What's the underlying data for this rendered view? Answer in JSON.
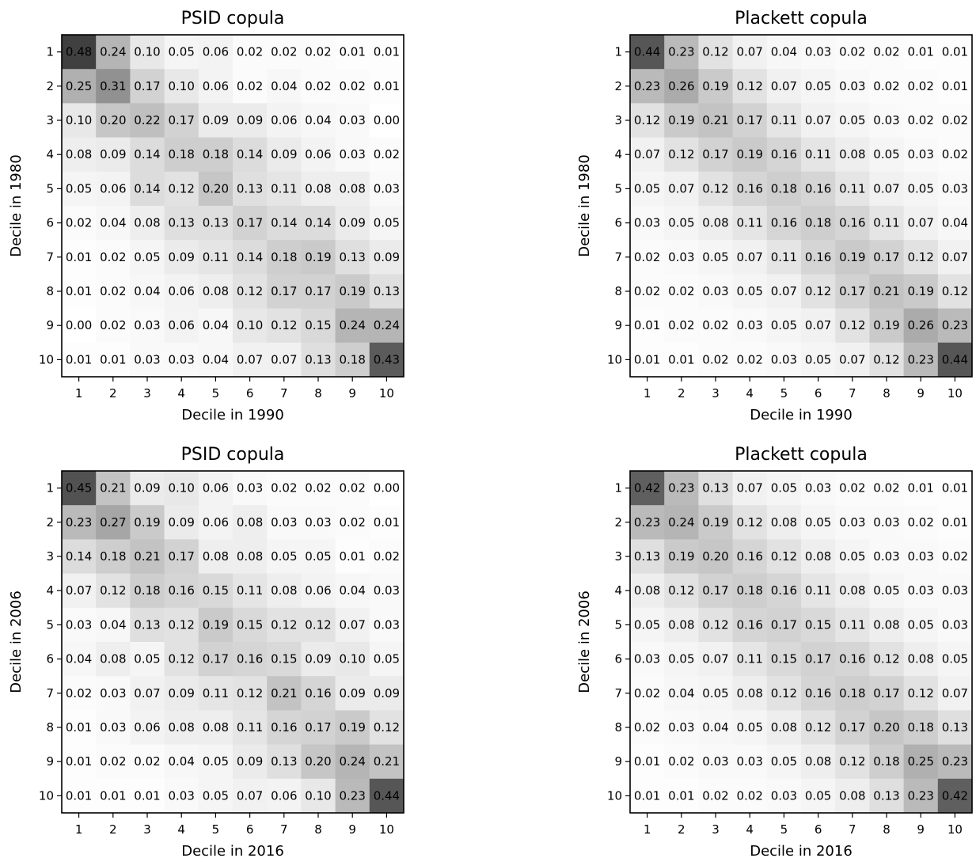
{
  "chart_data": [
    {
      "type": "heatmap",
      "title": "PSID copula",
      "xlabel": "Decile in 1990",
      "ylabel": "Decile in 1980",
      "x_ticks": [
        "1",
        "2",
        "3",
        "4",
        "5",
        "6",
        "7",
        "8",
        "9",
        "10"
      ],
      "y_ticks": [
        "1",
        "2",
        "3",
        "4",
        "5",
        "6",
        "7",
        "8",
        "9",
        "10"
      ],
      "colormap": "Greys",
      "vmin": 0.0,
      "vmax": 0.6,
      "values": [
        [
          0.48,
          0.24,
          0.1,
          0.05,
          0.06,
          0.02,
          0.02,
          0.02,
          0.01,
          0.01
        ],
        [
          0.25,
          0.31,
          0.17,
          0.1,
          0.06,
          0.02,
          0.04,
          0.02,
          0.02,
          0.01
        ],
        [
          0.1,
          0.2,
          0.22,
          0.17,
          0.09,
          0.09,
          0.06,
          0.04,
          0.03,
          0.0
        ],
        [
          0.08,
          0.09,
          0.14,
          0.18,
          0.18,
          0.14,
          0.09,
          0.06,
          0.03,
          0.02
        ],
        [
          0.05,
          0.06,
          0.14,
          0.12,
          0.2,
          0.13,
          0.11,
          0.08,
          0.08,
          0.03
        ],
        [
          0.02,
          0.04,
          0.08,
          0.13,
          0.13,
          0.17,
          0.14,
          0.14,
          0.09,
          0.05
        ],
        [
          0.01,
          0.02,
          0.05,
          0.09,
          0.11,
          0.14,
          0.18,
          0.19,
          0.13,
          0.09
        ],
        [
          0.01,
          0.02,
          0.04,
          0.06,
          0.08,
          0.12,
          0.17,
          0.17,
          0.19,
          0.13
        ],
        [
          0.0,
          0.02,
          0.03,
          0.06,
          0.04,
          0.1,
          0.12,
          0.15,
          0.24,
          0.24
        ],
        [
          0.01,
          0.01,
          0.03,
          0.03,
          0.04,
          0.07,
          0.07,
          0.13,
          0.18,
          0.43
        ]
      ]
    },
    {
      "type": "heatmap",
      "title": "Plackett copula",
      "xlabel": "Decile in 1990",
      "ylabel": "Decile in 1980",
      "x_ticks": [
        "1",
        "2",
        "3",
        "4",
        "5",
        "6",
        "7",
        "8",
        "9",
        "10"
      ],
      "y_ticks": [
        "1",
        "2",
        "3",
        "4",
        "5",
        "6",
        "7",
        "8",
        "9",
        "10"
      ],
      "colormap": "Greys",
      "vmin": 0.0,
      "vmax": 0.6,
      "values": [
        [
          0.44,
          0.23,
          0.12,
          0.07,
          0.04,
          0.03,
          0.02,
          0.02,
          0.01,
          0.01
        ],
        [
          0.23,
          0.26,
          0.19,
          0.12,
          0.07,
          0.05,
          0.03,
          0.02,
          0.02,
          0.01
        ],
        [
          0.12,
          0.19,
          0.21,
          0.17,
          0.11,
          0.07,
          0.05,
          0.03,
          0.02,
          0.02
        ],
        [
          0.07,
          0.12,
          0.17,
          0.19,
          0.16,
          0.11,
          0.08,
          0.05,
          0.03,
          0.02
        ],
        [
          0.05,
          0.07,
          0.12,
          0.16,
          0.18,
          0.16,
          0.11,
          0.07,
          0.05,
          0.03
        ],
        [
          0.03,
          0.05,
          0.08,
          0.11,
          0.16,
          0.18,
          0.16,
          0.11,
          0.07,
          0.04
        ],
        [
          0.02,
          0.03,
          0.05,
          0.07,
          0.11,
          0.16,
          0.19,
          0.17,
          0.12,
          0.07
        ],
        [
          0.02,
          0.02,
          0.03,
          0.05,
          0.07,
          0.12,
          0.17,
          0.21,
          0.19,
          0.12
        ],
        [
          0.01,
          0.02,
          0.02,
          0.03,
          0.05,
          0.07,
          0.12,
          0.19,
          0.26,
          0.23
        ],
        [
          0.01,
          0.01,
          0.02,
          0.02,
          0.03,
          0.05,
          0.07,
          0.12,
          0.23,
          0.44
        ]
      ]
    },
    {
      "type": "heatmap",
      "title": "PSID copula",
      "xlabel": "Decile in 2016",
      "ylabel": "Decile in 2006",
      "x_ticks": [
        "1",
        "2",
        "3",
        "4",
        "5",
        "6",
        "7",
        "8",
        "9",
        "10"
      ],
      "y_ticks": [
        "1",
        "2",
        "3",
        "4",
        "5",
        "6",
        "7",
        "8",
        "9",
        "10"
      ],
      "colormap": "Greys",
      "vmin": 0.0,
      "vmax": 0.6,
      "values": [
        [
          0.45,
          0.21,
          0.09,
          0.1,
          0.06,
          0.03,
          0.02,
          0.02,
          0.02,
          0.0
        ],
        [
          0.23,
          0.27,
          0.19,
          0.09,
          0.06,
          0.08,
          0.03,
          0.03,
          0.02,
          0.01
        ],
        [
          0.14,
          0.18,
          0.21,
          0.17,
          0.08,
          0.08,
          0.05,
          0.05,
          0.01,
          0.02
        ],
        [
          0.07,
          0.12,
          0.18,
          0.16,
          0.15,
          0.11,
          0.08,
          0.06,
          0.04,
          0.03
        ],
        [
          0.03,
          0.04,
          0.13,
          0.12,
          0.19,
          0.15,
          0.12,
          0.12,
          0.07,
          0.03
        ],
        [
          0.04,
          0.08,
          0.05,
          0.12,
          0.17,
          0.16,
          0.15,
          0.09,
          0.1,
          0.05
        ],
        [
          0.02,
          0.03,
          0.07,
          0.09,
          0.11,
          0.12,
          0.21,
          0.16,
          0.09,
          0.09
        ],
        [
          0.01,
          0.03,
          0.06,
          0.08,
          0.08,
          0.11,
          0.16,
          0.17,
          0.19,
          0.12
        ],
        [
          0.01,
          0.02,
          0.02,
          0.04,
          0.05,
          0.09,
          0.13,
          0.2,
          0.24,
          0.21
        ],
        [
          0.01,
          0.01,
          0.01,
          0.03,
          0.05,
          0.07,
          0.06,
          0.1,
          0.23,
          0.44
        ]
      ]
    },
    {
      "type": "heatmap",
      "title": "Plackett copula",
      "xlabel": "Decile in 2016",
      "ylabel": "Decile in 2006",
      "x_ticks": [
        "1",
        "2",
        "3",
        "4",
        "5",
        "6",
        "7",
        "8",
        "9",
        "10"
      ],
      "y_ticks": [
        "1",
        "2",
        "3",
        "4",
        "5",
        "6",
        "7",
        "8",
        "9",
        "10"
      ],
      "colormap": "Greys",
      "vmin": 0.0,
      "vmax": 0.6,
      "values": [
        [
          0.42,
          0.23,
          0.13,
          0.07,
          0.05,
          0.03,
          0.02,
          0.02,
          0.01,
          0.01
        ],
        [
          0.23,
          0.24,
          0.19,
          0.12,
          0.08,
          0.05,
          0.03,
          0.03,
          0.02,
          0.01
        ],
        [
          0.13,
          0.19,
          0.2,
          0.16,
          0.12,
          0.08,
          0.05,
          0.03,
          0.03,
          0.02
        ],
        [
          0.08,
          0.12,
          0.17,
          0.18,
          0.16,
          0.11,
          0.08,
          0.05,
          0.03,
          0.03
        ],
        [
          0.05,
          0.08,
          0.12,
          0.16,
          0.17,
          0.15,
          0.11,
          0.08,
          0.05,
          0.03
        ],
        [
          0.03,
          0.05,
          0.07,
          0.11,
          0.15,
          0.17,
          0.16,
          0.12,
          0.08,
          0.05
        ],
        [
          0.02,
          0.04,
          0.05,
          0.08,
          0.12,
          0.16,
          0.18,
          0.17,
          0.12,
          0.07
        ],
        [
          0.02,
          0.03,
          0.04,
          0.05,
          0.08,
          0.12,
          0.17,
          0.2,
          0.18,
          0.13
        ],
        [
          0.01,
          0.02,
          0.03,
          0.03,
          0.05,
          0.08,
          0.12,
          0.18,
          0.25,
          0.23
        ],
        [
          0.01,
          0.01,
          0.02,
          0.02,
          0.03,
          0.05,
          0.08,
          0.13,
          0.23,
          0.42
        ]
      ]
    }
  ]
}
